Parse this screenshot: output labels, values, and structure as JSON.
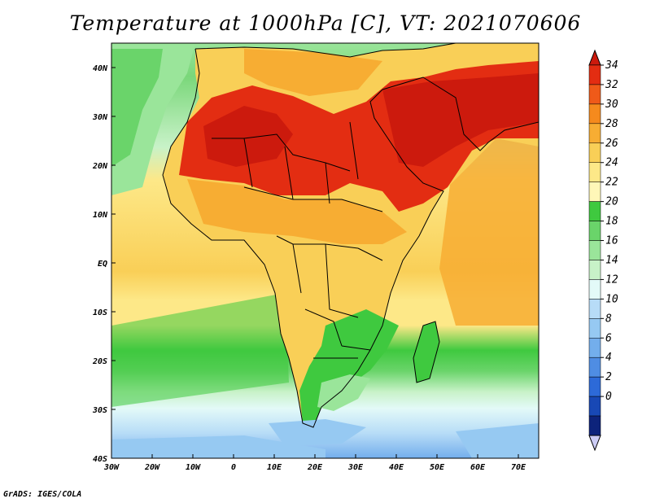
{
  "title": "Temperature at 1000hPa [C], VT: 2021070606",
  "footer": "GrADS: IGES/COLA",
  "map": {
    "lon_range": [
      -30,
      75
    ],
    "lat_range": [
      -40,
      45
    ],
    "lon_ticks": [
      {
        "value": -30,
        "label": "30W"
      },
      {
        "value": -20,
        "label": "20W"
      },
      {
        "value": -10,
        "label": "10W"
      },
      {
        "value": 0,
        "label": "0"
      },
      {
        "value": 10,
        "label": "10E"
      },
      {
        "value": 20,
        "label": "20E"
      },
      {
        "value": 30,
        "label": "30E"
      },
      {
        "value": 40,
        "label": "40E"
      },
      {
        "value": 50,
        "label": "50E"
      },
      {
        "value": 60,
        "label": "60E"
      },
      {
        "value": 70,
        "label": "70E"
      }
    ],
    "lat_ticks": [
      {
        "value": 40,
        "label": "40N"
      },
      {
        "value": 30,
        "label": "30N"
      },
      {
        "value": 20,
        "label": "20N"
      },
      {
        "value": 10,
        "label": "10N"
      },
      {
        "value": 0,
        "label": "EQ"
      },
      {
        "value": -10,
        "label": "10S"
      },
      {
        "value": -20,
        "label": "20S"
      },
      {
        "value": -30,
        "label": "30S"
      },
      {
        "value": -40,
        "label": "40S"
      }
    ]
  },
  "colorbar": {
    "labels": [
      "34",
      "32",
      "30",
      "28",
      "26",
      "24",
      "22",
      "20",
      "18",
      "16",
      "14",
      "12",
      "10",
      "8",
      "6",
      "4",
      "2",
      "0"
    ],
    "colors": [
      "#cc1a0d",
      "#e32d12",
      "#ef5a19",
      "#f58a1d",
      "#f7ad33",
      "#f9cf57",
      "#fde888",
      "#fff7b8",
      "#3fc93f",
      "#6ad46a",
      "#9ae59a",
      "#c8f2c8",
      "#e3faf8",
      "#b7dcf7",
      "#96c9f2",
      "#73aeec",
      "#4f8de3",
      "#2d6ad8",
      "#1848b5",
      "#0d237b",
      "#ccccf5"
    ]
  }
}
